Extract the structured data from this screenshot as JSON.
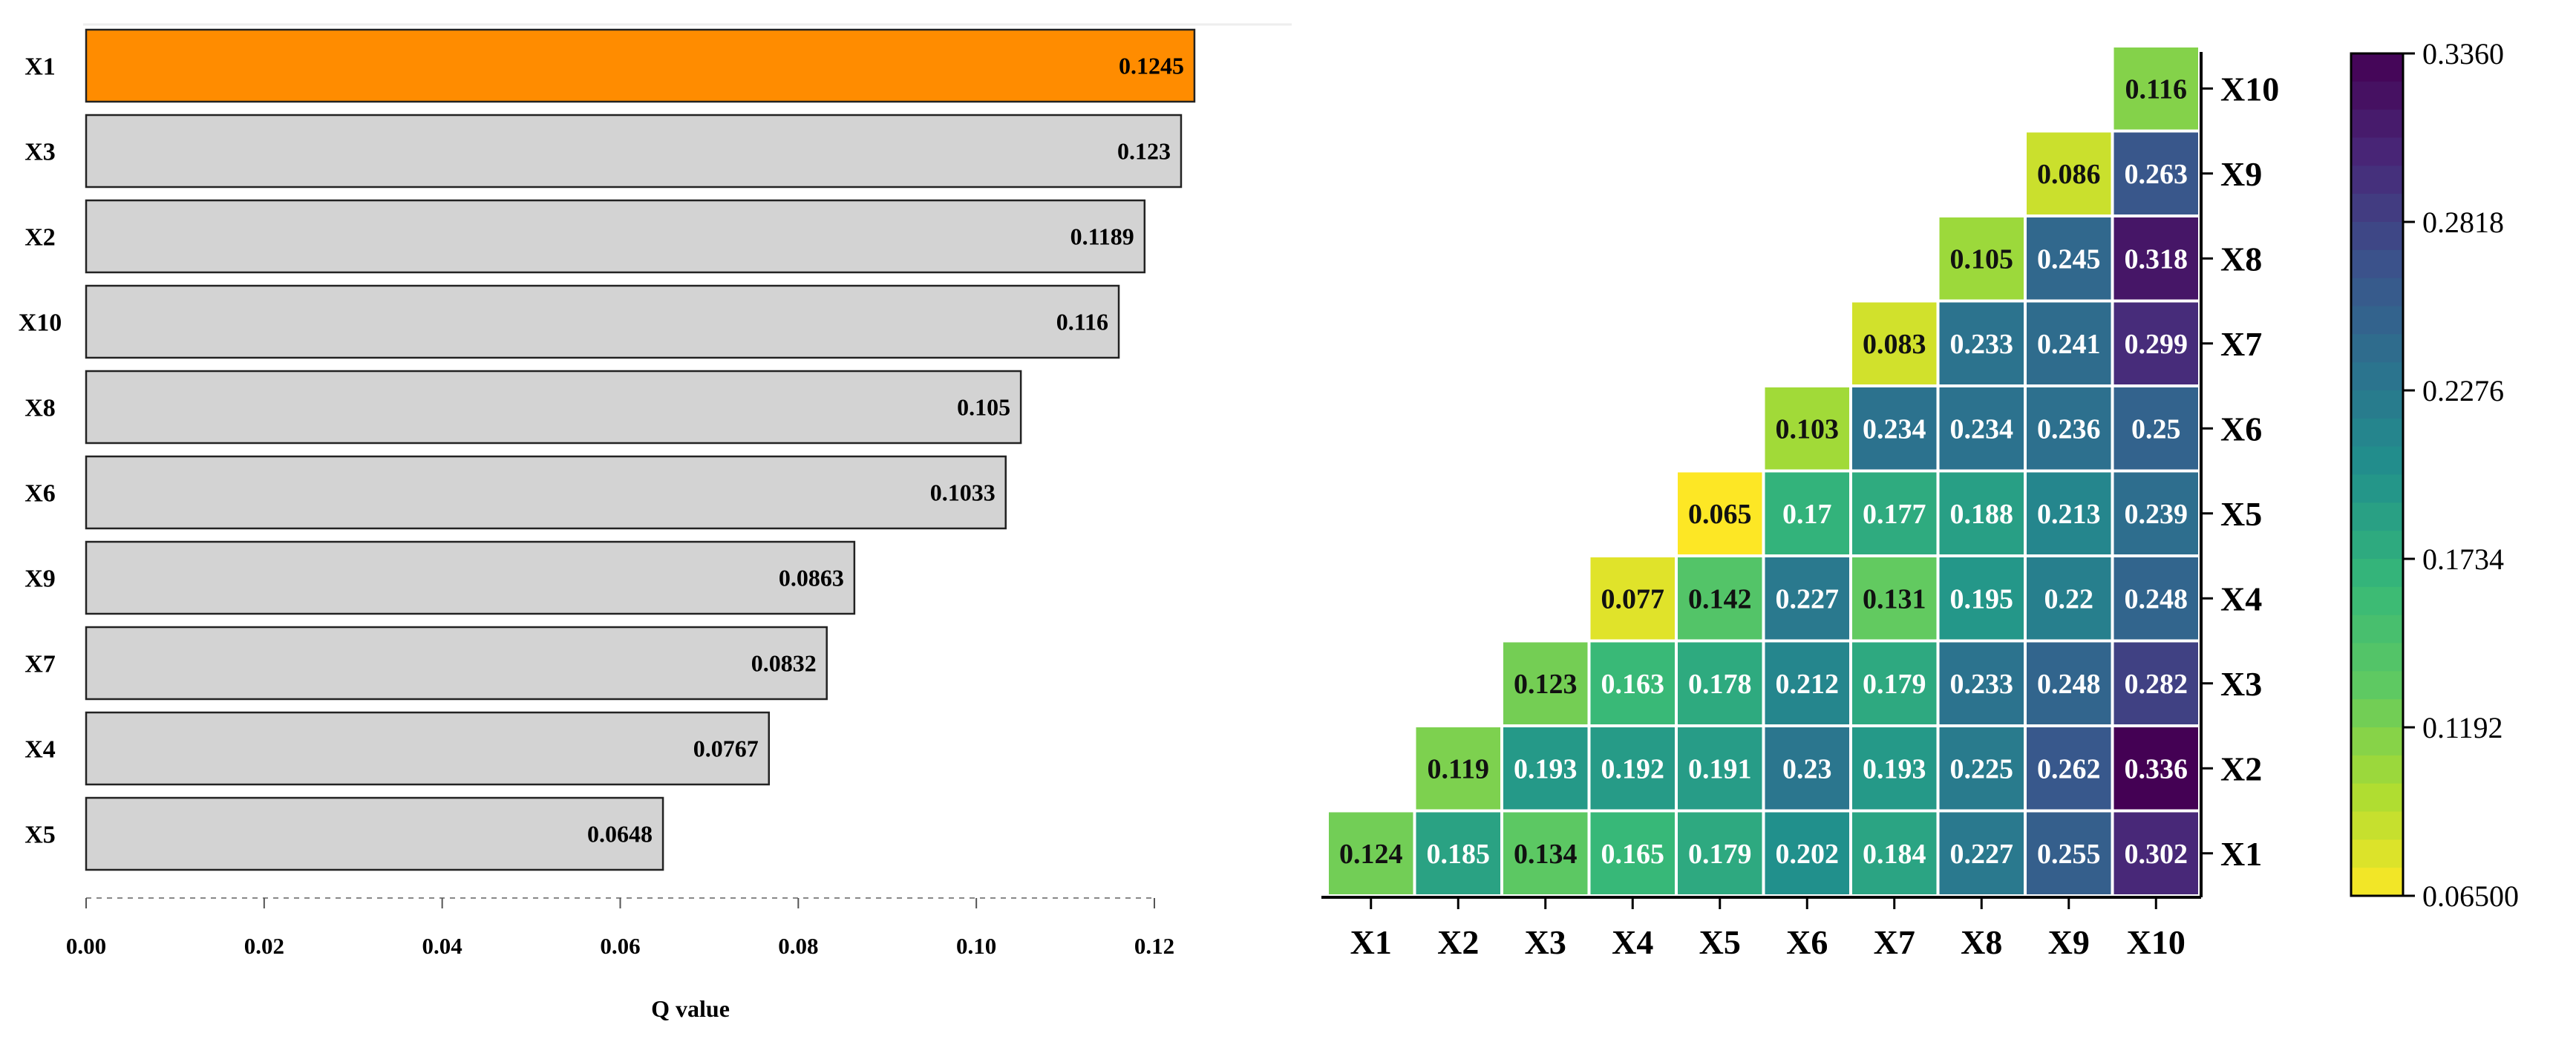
{
  "chart_data": [
    {
      "type": "bar",
      "orientation": "horizontal",
      "categories": [
        "X1",
        "X3",
        "X2",
        "X10",
        "X8",
        "X6",
        "X9",
        "X7",
        "X4",
        "X5"
      ],
      "values": [
        0.1245,
        0.123,
        0.1189,
        0.116,
        0.105,
        0.1033,
        0.0863,
        0.0832,
        0.0767,
        0.0648
      ],
      "value_labels": [
        "0.1245",
        "0.123",
        "0.1189",
        "0.116",
        "0.105",
        "0.1033",
        "0.0863",
        "0.0832",
        "0.0767",
        "0.0648"
      ],
      "highlight_category": "X1",
      "highlight_color": "#FF8C00",
      "bar_color": "#D3D3D3",
      "xlabel": "Q value",
      "ylabel": "",
      "xlim": [
        0,
        0.12
      ],
      "xticks": [
        "0.00",
        "0.02",
        "0.04",
        "0.06",
        "0.08",
        "0.10",
        "0.12"
      ]
    },
    {
      "type": "heatmap",
      "variables": [
        "X1",
        "X2",
        "X3",
        "X4",
        "X5",
        "X6",
        "X7",
        "X8",
        "X9",
        "X10"
      ],
      "values": [
        [
          "0.124"
        ],
        [
          "0.185",
          "0.119"
        ],
        [
          "0.134",
          "0.193",
          "0.123"
        ],
        [
          "0.165",
          "0.192",
          "0.163",
          "0.077"
        ],
        [
          "0.179",
          "0.191",
          "0.178",
          "0.142",
          "0.065"
        ],
        [
          "0.202",
          "0.23",
          "0.212",
          "0.227",
          "0.17",
          "0.103"
        ],
        [
          "0.184",
          "0.193",
          "0.179",
          "0.131",
          "0.177",
          "0.234",
          "0.083"
        ],
        [
          "0.227",
          "0.225",
          "0.233",
          "0.195",
          "0.188",
          "0.234",
          "0.233",
          "0.105"
        ],
        [
          "0.255",
          "0.262",
          "0.248",
          "0.22",
          "0.213",
          "0.236",
          "0.241",
          "0.245",
          "0.086"
        ],
        [
          "0.302",
          "0.336",
          "0.282",
          "0.248",
          "0.239",
          "0.25",
          "0.299",
          "0.318",
          "0.263",
          "0.116"
        ]
      ],
      "colorbar": {
        "min": 0.065,
        "max": 0.336,
        "ticks": [
          "0.3360",
          "0.2818",
          "0.2276",
          "0.1734",
          "0.1192",
          "0.06500"
        ],
        "colormap": "viridis"
      }
    }
  ]
}
